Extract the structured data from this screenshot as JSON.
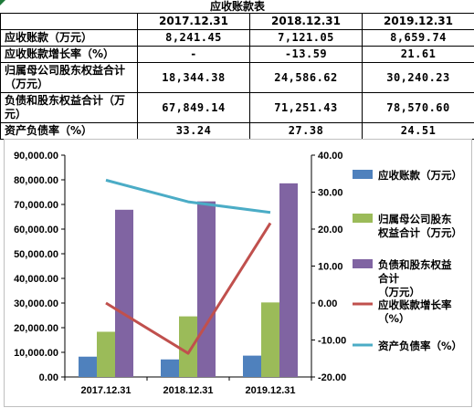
{
  "table": {
    "title": "应收账款表",
    "headers": [
      "",
      "2017.12.31",
      "2018.12.31",
      "2019.12.31"
    ],
    "rows": [
      {
        "label": "应收账款（万元）",
        "values": [
          "8,241.45",
          "7,121.05",
          "8,659.74"
        ]
      },
      {
        "label": "应收账款增长率（%）",
        "values": [
          "-",
          "-13.59",
          "21.61"
        ]
      },
      {
        "label": "归属母公司股东权益合计（万元）",
        "values": [
          "18,344.38",
          "24,586.62",
          "30,240.23"
        ]
      },
      {
        "label": "负债和股东权益合计（万元）",
        "values": [
          "67,849.14",
          "71,251.43",
          "78,570.60"
        ]
      },
      {
        "label": "资产负债率（%）",
        "values": [
          "33.24",
          "27.38",
          "24.51"
        ]
      }
    ]
  },
  "chart_data": {
    "type": "bar",
    "categories": [
      "2017.12.31",
      "2018.12.31",
      "2019.12.31"
    ],
    "y_left": {
      "ylim": [
        0,
        90000
      ],
      "ticks": [
        "0.00",
        "10,000.00",
        "20,000.00",
        "30,000.00",
        "40,000.00",
        "50,000.00",
        "60,000.00",
        "70,000.00",
        "80,000.00",
        "90,000.00"
      ]
    },
    "y_right": {
      "ylim": [
        -20,
        40
      ],
      "ticks": [
        "-20.00",
        "-10.00",
        "0.00",
        "10.00",
        "20.00",
        "30.00",
        "40.00"
      ]
    },
    "grid": false,
    "legend_placement": "right",
    "series": [
      {
        "name": "应收账款（万元）",
        "type": "bar",
        "axis": "left",
        "color": "#4f81bd",
        "values": [
          8241.45,
          7121.05,
          8659.74
        ]
      },
      {
        "name": "归属母公司股东权益合计（万元）",
        "type": "bar",
        "axis": "left",
        "color": "#9bbb59",
        "values": [
          18344.38,
          24586.62,
          30240.23
        ]
      },
      {
        "name": "负债和股东权益合计（万元）",
        "type": "bar",
        "axis": "left",
        "color": "#8064a2",
        "values": [
          67849.14,
          71251.43,
          78570.6
        ]
      },
      {
        "name": "应收账款增长率（%）",
        "type": "line",
        "axis": "right",
        "color": "#c0504d",
        "values": [
          0,
          -13.59,
          21.61
        ]
      },
      {
        "name": "资产负债率（%）",
        "type": "line",
        "axis": "right",
        "color": "#4bacc6",
        "values": [
          33.24,
          27.38,
          24.51
        ]
      }
    ],
    "legend_lines": [
      [
        "应收账款（万元）"
      ],
      [
        "归属母公司股东",
        "权益合计（万元）"
      ],
      [
        "负债和股东权益",
        "合计",
        "（万元）"
      ],
      [
        "应收账款增长率",
        "（%）"
      ],
      [
        "资产负债率（%）"
      ]
    ]
  }
}
